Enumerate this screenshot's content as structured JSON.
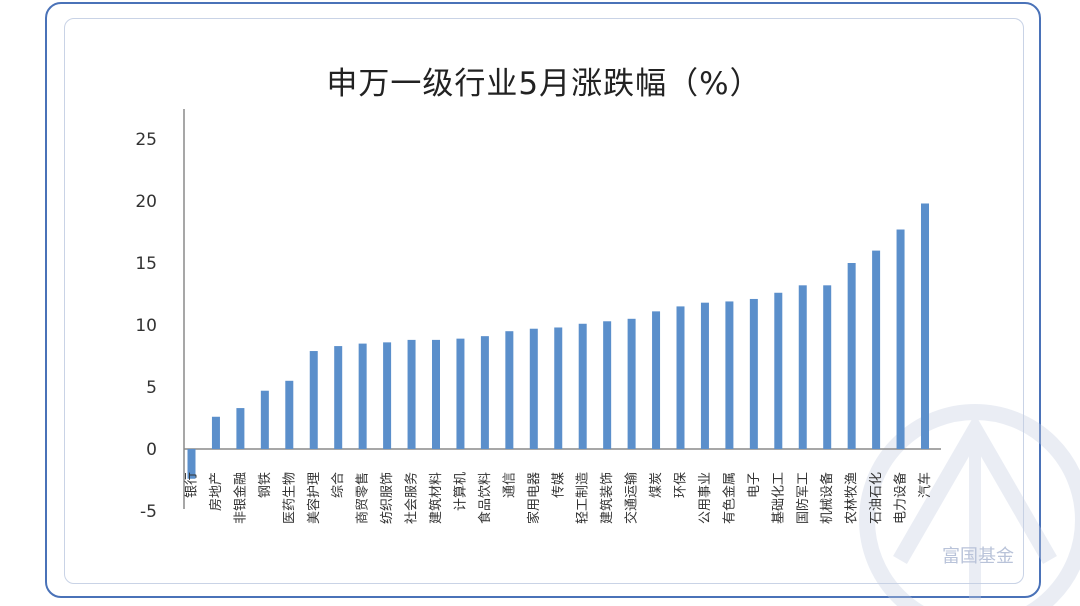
{
  "chart_data": {
    "type": "bar",
    "title": "申万一级行业5月涨跌幅（%）",
    "xlabel": "",
    "ylabel": "",
    "ylim": [
      -5,
      25
    ],
    "yticks": [
      25,
      20,
      15,
      10,
      5,
      0,
      -5
    ],
    "grid": false,
    "legend": "none",
    "bar_color": "#5b8fcb",
    "categories": [
      "银行",
      "房地产",
      "非银金融",
      "钢铁",
      "医药生物",
      "美容护理",
      "综合",
      "商贸零售",
      "纺织服饰",
      "社会服务",
      "建筑材料",
      "计算机",
      "食品饮料",
      "通信",
      "家用电器",
      "传媒",
      "轻工制造",
      "建筑装饰",
      "交通运输",
      "煤炭",
      "环保",
      "公用事业",
      "有色金属",
      "电子",
      "基础化工",
      "国防军工",
      "机械设备",
      "农林牧渔",
      "石油石化",
      "电力设备",
      "汽车"
    ],
    "values": [
      -2.4,
      2.6,
      3.3,
      4.7,
      5.5,
      7.9,
      8.3,
      8.5,
      8.6,
      8.8,
      8.8,
      8.9,
      9.1,
      9.5,
      9.7,
      9.8,
      10.1,
      10.3,
      10.5,
      11.1,
      11.5,
      11.8,
      11.9,
      12.1,
      12.6,
      13.2,
      13.2,
      15.0,
      16.0,
      17.7,
      19.8
    ]
  },
  "watermark": {
    "text": "富国基金",
    "icon": "fullgoal-logo-icon"
  },
  "colors": {
    "frame": "#4a72b8",
    "inner_frame": "#c9d3e6",
    "bar": "#5b8fcb",
    "axis": "#8a8a8a"
  }
}
